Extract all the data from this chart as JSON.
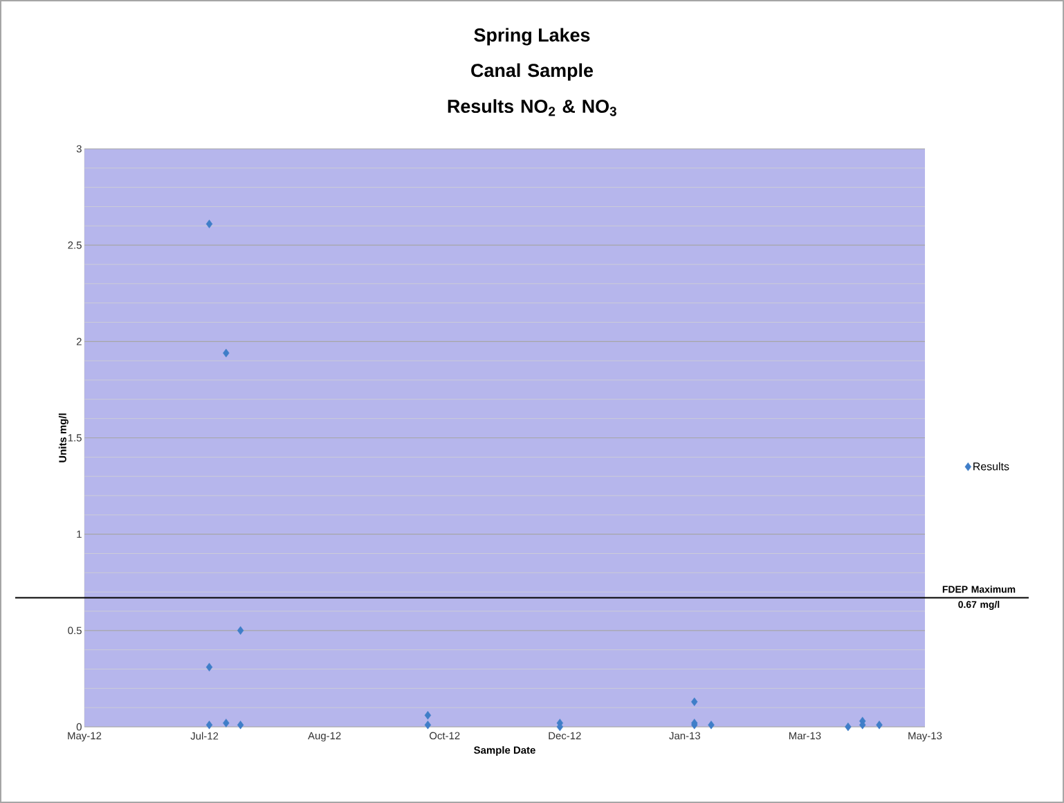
{
  "chart_data": {
    "type": "scatter",
    "title": "Spring Lakes",
    "subtitle": "Canal Sample Results NO$_{2}$ & NO$_{3}$",
    "xlabel": "Sample Date",
    "ylabel": "Units mg/l",
    "series": [
      {
        "name": "Results",
        "color": "#3f7ec8",
        "marker": "diamond",
        "x": [
          "2012-07-12",
          "2012-07-12",
          "2012-07-12",
          "2012-07-19",
          "2012-07-19",
          "2012-07-25",
          "2012-07-25",
          "2012-10-11",
          "2012-10-11",
          "2012-12-05",
          "2012-12-05",
          "2013-01-30",
          "2013-01-30",
          "2013-01-30",
          "2013-02-06",
          "2013-04-04",
          "2013-04-10",
          "2013-04-10",
          "2013-04-17"
        ],
        "values": [
          2.61,
          0.31,
          0.01,
          1.94,
          0.02,
          0.5,
          0.01,
          0.06,
          0.01,
          0.02,
          0.0,
          0.13,
          0.01,
          0.02,
          0.01,
          0.0,
          0.03,
          0.01,
          0.01
        ]
      }
    ],
    "xlim": [
      "2012-05-21",
      "2013-05-06"
    ],
    "xticks": [
      {
        "value": "2012-05-21",
        "label": "May-12"
      },
      {
        "value": "2012-07-10",
        "label": "Jul-12"
      },
      {
        "value": "2012-08-29",
        "label": "Aug-12"
      },
      {
        "value": "2012-10-18",
        "label": "Oct-12"
      },
      {
        "value": "2012-12-07",
        "label": "Dec-12"
      },
      {
        "value": "2013-01-26",
        "label": "Jan-13"
      },
      {
        "value": "2013-03-17",
        "label": "Mar-13"
      },
      {
        "value": "2013-05-06",
        "label": "May-13"
      }
    ],
    "ylim": [
      0,
      3
    ],
    "yticks": [
      0,
      0.5,
      1,
      1.5,
      2,
      2.5,
      3
    ],
    "ref_lines": [
      {
        "axis": "y",
        "value": 0.67,
        "label": "FDEP Maximum 0.67 mg/l",
        "color": "#000000"
      }
    ],
    "grid": "y",
    "legend": "right"
  }
}
